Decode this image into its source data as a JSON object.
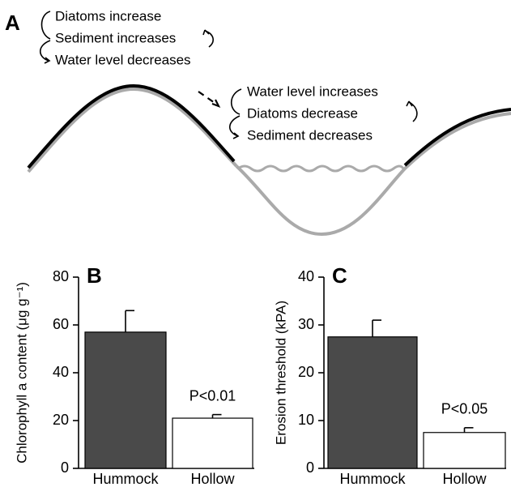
{
  "panel_a": {
    "label": "A",
    "left_notes": [
      "Diatoms increase",
      "Sediment increases",
      "Water level decreases"
    ],
    "right_notes": [
      "Water level increases",
      "Diatoms decrease",
      "Sediment decreases"
    ]
  },
  "chart_data": [
    {
      "type": "bar",
      "panel": "B",
      "ylabel": "Chlorophyll a content (μg g⁻¹)",
      "categories": [
        "Hummock",
        "Hollow"
      ],
      "values": [
        57,
        21
      ],
      "errors": [
        9,
        1.5
      ],
      "colors": [
        "#4a4a4a",
        "#ffffff"
      ],
      "annotation": "P<0.01",
      "ylim": [
        0,
        80
      ],
      "yticks": [
        0,
        20,
        40,
        60,
        80
      ]
    },
    {
      "type": "bar",
      "panel": "C",
      "ylabel": "Erosion threshold (kPA)",
      "categories": [
        "Hummock",
        "Hollow"
      ],
      "values": [
        27.5,
        7.5
      ],
      "errors": [
        3.5,
        1
      ],
      "colors": [
        "#4a4a4a",
        "#ffffff"
      ],
      "annotation": "P<0.05",
      "ylim": [
        0,
        40
      ],
      "yticks": [
        0,
        10,
        20,
        30,
        40
      ]
    }
  ]
}
